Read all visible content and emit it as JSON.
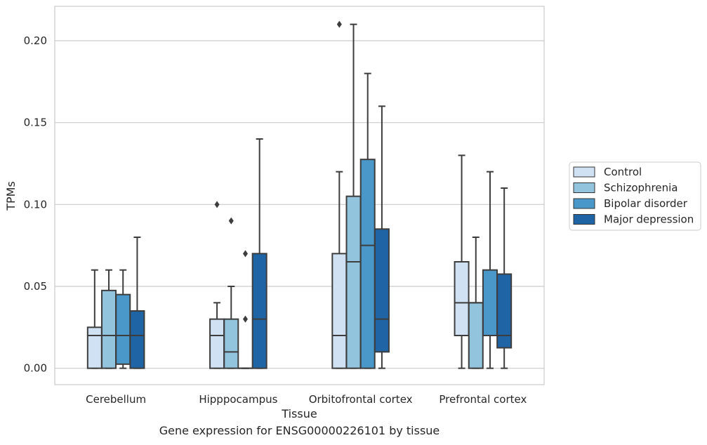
{
  "chart_data": {
    "type": "boxplot",
    "title": "",
    "xlabel": "Tissue",
    "ylabel": "TPMs",
    "caption": "Gene expression for ENSG00000226101 by tissue",
    "ylim": [
      -0.01,
      0.221
    ],
    "yticks": [
      0.0,
      0.05,
      0.1,
      0.15,
      0.2
    ],
    "ytick_labels": [
      "0.00",
      "0.05",
      "0.10",
      "0.15",
      "0.20"
    ],
    "grid": "horizontal",
    "legend_position": "right",
    "categories": [
      "Cerebellum",
      "Hipppocampus",
      "Orbitofrontal cortex",
      "Prefrontal cortex"
    ],
    "series": [
      {
        "name": "Control",
        "color": "#cfe1f2",
        "boxes": [
          {
            "whisker_low": 0.0,
            "q1": 0.0,
            "median": 0.02,
            "q3": 0.025,
            "whisker_high": 0.06,
            "outliers": []
          },
          {
            "whisker_low": 0.0,
            "q1": 0.0,
            "median": 0.02,
            "q3": 0.03,
            "whisker_high": 0.04,
            "outliers": [
              0.1
            ]
          },
          {
            "whisker_low": 0.0,
            "q1": 0.0,
            "median": 0.02,
            "q3": 0.07,
            "whisker_high": 0.12,
            "outliers": [
              0.21
            ]
          },
          {
            "whisker_low": 0.0,
            "q1": 0.02,
            "median": 0.04,
            "q3": 0.065,
            "whisker_high": 0.13,
            "outliers": []
          }
        ]
      },
      {
        "name": "Schizophrenia",
        "color": "#93c4de",
        "boxes": [
          {
            "whisker_low": 0.0,
            "q1": 0.0,
            "median": 0.02,
            "q3": 0.0475,
            "whisker_high": 0.06,
            "outliers": []
          },
          {
            "whisker_low": 0.0,
            "q1": 0.0,
            "median": 0.01,
            "q3": 0.03,
            "whisker_high": 0.05,
            "outliers": [
              0.09
            ]
          },
          {
            "whisker_low": 0.0,
            "q1": 0.0,
            "median": 0.065,
            "q3": 0.105,
            "whisker_high": 0.21,
            "outliers": []
          },
          {
            "whisker_low": 0.0,
            "q1": 0.0,
            "median": 0.04,
            "q3": 0.04,
            "whisker_high": 0.08,
            "outliers": []
          }
        ]
      },
      {
        "name": "Bipolar disorder",
        "color": "#4a98c9",
        "boxes": [
          {
            "whisker_low": 0.0,
            "q1": 0.0025,
            "median": 0.02,
            "q3": 0.045,
            "whisker_high": 0.06,
            "outliers": []
          },
          {
            "whisker_low": 0.0,
            "q1": 0.0,
            "median": 0.0,
            "q3": 0.0,
            "whisker_high": 0.0,
            "outliers": [
              0.03,
              0.07
            ]
          },
          {
            "whisker_low": 0.0,
            "q1": 0.0,
            "median": 0.075,
            "q3": 0.1275,
            "whisker_high": 0.18,
            "outliers": []
          },
          {
            "whisker_low": 0.0,
            "q1": 0.02,
            "median": 0.02,
            "q3": 0.06,
            "whisker_high": 0.12,
            "outliers": []
          }
        ]
      },
      {
        "name": "Major depression",
        "color": "#1f65a6",
        "boxes": [
          {
            "whisker_low": 0.0,
            "q1": 0.0,
            "median": 0.02,
            "q3": 0.035,
            "whisker_high": 0.08,
            "outliers": []
          },
          {
            "whisker_low": 0.0,
            "q1": 0.0,
            "median": 0.03,
            "q3": 0.07,
            "whisker_high": 0.14,
            "outliers": []
          },
          {
            "whisker_low": 0.0,
            "q1": 0.01,
            "median": 0.03,
            "q3": 0.085,
            "whisker_high": 0.16,
            "outliers": []
          },
          {
            "whisker_low": 0.0,
            "q1": 0.0125,
            "median": 0.02,
            "q3": 0.0575,
            "whisker_high": 0.11,
            "outliers": []
          }
        ]
      }
    ]
  }
}
